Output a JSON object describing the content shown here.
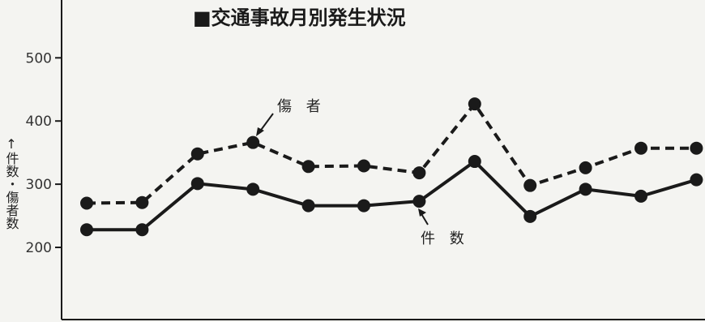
{
  "chart_data": {
    "type": "line",
    "title": "■交通事故月別発生状況",
    "ylabel": "↑件数・傷者数",
    "xlabel": "",
    "ylim": [
      100,
      600
    ],
    "yticks": [
      200,
      300,
      400,
      500
    ],
    "grid": false,
    "x": [
      1,
      2,
      3,
      4,
      5,
      6,
      7,
      8,
      9,
      10,
      11,
      12
    ],
    "series": [
      {
        "name": "傷者",
        "style": "dashed",
        "values": [
          270,
          271,
          348,
          366,
          328,
          329,
          318,
          427,
          298,
          326,
          357,
          357
        ]
      },
      {
        "name": "件数",
        "style": "solid",
        "values": [
          228,
          228,
          301,
          292,
          266,
          266,
          273,
          336,
          249,
          292,
          281,
          307
        ]
      }
    ],
    "annotations": [
      {
        "text": "傷 者",
        "series": "傷者"
      },
      {
        "text": "件 数",
        "series": "件数"
      }
    ]
  },
  "colors": {
    "ink": "#1a1a1a",
    "background": "#f4f4f1"
  }
}
